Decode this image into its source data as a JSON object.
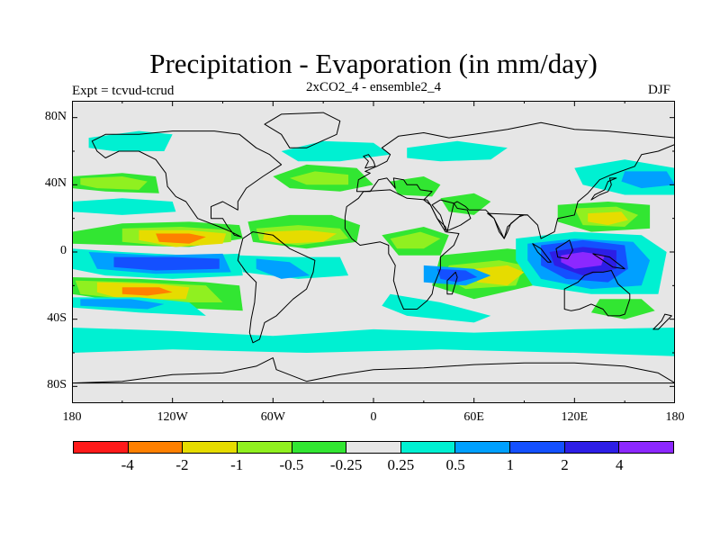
{
  "title": "Precipitation - Evaporation (in mm/day)",
  "subtitle_left": "Expt = tcvud-tcrud",
  "subtitle_center": "2xCO2_4 - ensemble2_4",
  "subtitle_right": "DJF",
  "map": {
    "projection": "cylindrical-equidistant",
    "lon_range": [
      -180,
      180
    ],
    "lat_range": [
      -90,
      90
    ],
    "ocean_background": "#e6e6e6",
    "coastline_color": "#000000",
    "lat_ticks": [
      "80N",
      "40N",
      "0",
      "40S",
      "80S"
    ],
    "lat_values": [
      80,
      40,
      0,
      -40,
      -80
    ],
    "lon_ticks": [
      "180",
      "120W",
      "60W",
      "0",
      "60E",
      "120E",
      "180"
    ],
    "lon_values": [
      -180,
      -120,
      -60,
      0,
      60,
      120,
      180
    ]
  },
  "colorbar": {
    "colors": [
      "#ff1a1a",
      "#ff8000",
      "#e6dc00",
      "#90f020",
      "#32e632",
      "#e6e6e6",
      "#00f0d2",
      "#00a0ff",
      "#1450ff",
      "#2d1ee6",
      "#8c28ff"
    ],
    "labels": [
      "-4",
      "-2",
      "-1",
      "-0.5",
      "-0.25",
      "0.25",
      "0.5",
      "1",
      "2",
      "4"
    ]
  },
  "chart_data": {
    "type": "heatmap",
    "title": "Precipitation - Evaporation (in mm/day)",
    "subtitle": "2xCO2_4 - ensemble2_4",
    "season": "DJF",
    "experiment": "Expt = tcvud-tcrud",
    "units": "mm/day",
    "xlim": [
      -180,
      180
    ],
    "ylim": [
      -90,
      90
    ],
    "contour_levels": [
      -4,
      -2,
      -1,
      -0.5,
      -0.25,
      0.25,
      0.5,
      1,
      2,
      4
    ],
    "regions": [
      {
        "lon": [
          -140,
          -80
        ],
        "lat": [
          2,
          12
        ],
        "level": "-2"
      },
      {
        "lon": [
          -70,
          -20
        ],
        "lat": [
          4,
          12
        ],
        "level": "-1"
      },
      {
        "lon": [
          -145,
          -85
        ],
        "lat": [
          -12,
          -3
        ],
        "level": "2"
      },
      {
        "lon": [
          100,
          145
        ],
        "lat": [
          -12,
          5
        ],
        "level": "4"
      },
      {
        "lon": [
          38,
          70
        ],
        "lat": [
          -18,
          -10
        ],
        "level": "2"
      },
      {
        "lon": [
          -160,
          -110
        ],
        "lat": [
          -22,
          -10
        ],
        "level": "-1"
      },
      {
        "lon": [
          -170,
          -120
        ],
        "lat": [
          -34,
          -27
        ],
        "level": "0.5"
      },
      {
        "lon": [
          -180,
          180
        ],
        "lat": [
          -60,
          -45
        ],
        "level": "0.5"
      },
      {
        "lon": [
          -170,
          -140
        ],
        "lat": [
          60,
          70
        ],
        "level": "0.5"
      },
      {
        "lon": [
          150,
          180
        ],
        "lat": [
          38,
          48
        ],
        "level": "1"
      }
    ]
  }
}
